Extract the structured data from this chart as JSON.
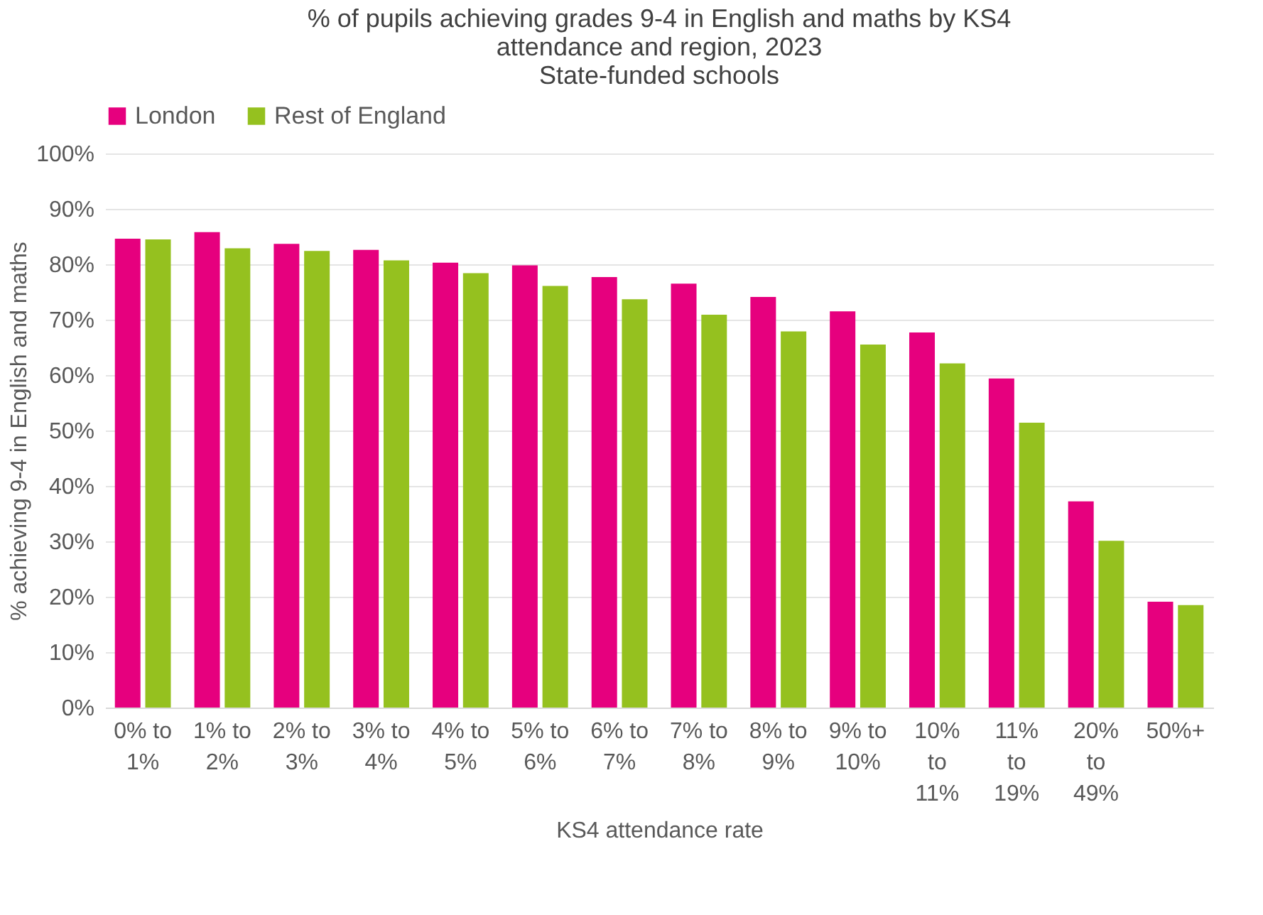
{
  "chart_data": {
    "type": "bar",
    "title": "% of pupils achieving grades 9-4 in English and maths by KS4 attendance and region, 2023",
    "subtitle": "State-funded schools",
    "xlabel": "KS4 attendance rate",
    "ylabel": "% achieving 9-4 in English and maths",
    "categories": [
      "0% to 1%",
      "1% to 2%",
      "2% to 3%",
      "3% to 4%",
      "4% to 5%",
      "5% to 6%",
      "6% to 7%",
      "7% to 8%",
      "8% to 9%",
      "9% to 10%",
      "10% to 11%",
      "11% to 19%",
      "20% to 49%",
      "50%+"
    ],
    "series": [
      {
        "name": "London",
        "color": "#e6007e",
        "values": [
          84.6,
          85.8,
          83.7,
          82.6,
          80.3,
          79.8,
          77.7,
          76.5,
          74.1,
          71.5,
          67.7,
          59.4,
          37.2,
          19.1
        ]
      },
      {
        "name": "Rest of England",
        "color": "#95c11f",
        "values": [
          84.5,
          82.9,
          82.4,
          80.7,
          78.4,
          76.1,
          73.7,
          70.9,
          67.9,
          65.5,
          62.1,
          51.4,
          30.1,
          18.5
        ]
      }
    ],
    "ylim": [
      0,
      100
    ],
    "yticks": [
      {
        "value": 0,
        "label": "0%"
      },
      {
        "value": 10,
        "label": "10%"
      },
      {
        "value": 20,
        "label": "20%"
      },
      {
        "value": 30,
        "label": "30%"
      },
      {
        "value": 40,
        "label": "40%"
      },
      {
        "value": 50,
        "label": "50%"
      },
      {
        "value": 60,
        "label": "60%"
      },
      {
        "value": 70,
        "label": "70%"
      },
      {
        "value": 80,
        "label": "80%"
      },
      {
        "value": 90,
        "label": "90%"
      },
      {
        "value": 100,
        "label": "100%"
      }
    ],
    "grid": "y",
    "legend": "top"
  }
}
